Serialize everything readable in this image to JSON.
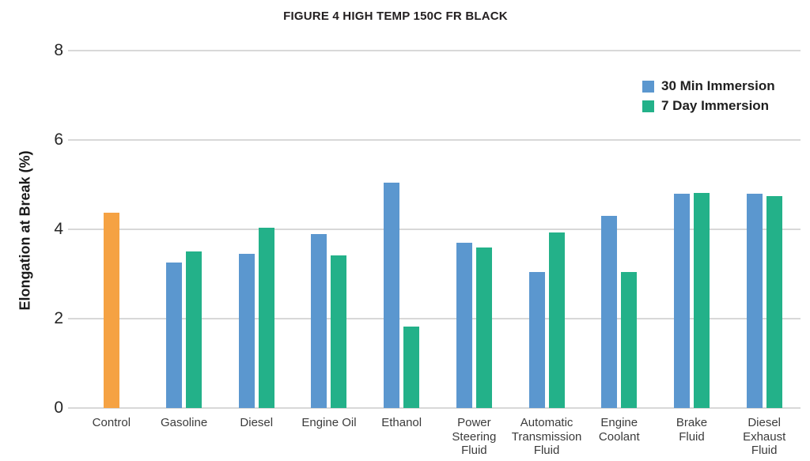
{
  "chart_data": {
    "type": "bar",
    "title": "FIGURE 4 HIGH TEMP 150C FR BLACK",
    "xlabel": "",
    "ylabel": "Elongation at Break (%)",
    "ylim": [
      0,
      8
    ],
    "yticks": [
      0,
      2,
      4,
      6,
      8
    ],
    "grid": true,
    "legend_position": "top-right",
    "background_color": "#ffffff",
    "gridline_color": "#d8d8d8",
    "categories": [
      "Control",
      "Gasoline",
      "Diesel",
      "Engine Oil",
      "Ethanol",
      "Power Steering Fluid",
      "Automatic Transmission Fluid",
      "Engine Coolant",
      "Brake Fluid",
      "Diesel Exhaust Fluid"
    ],
    "category_label_lines": [
      "Control",
      "Gasoline",
      "Diesel",
      "Engine Oil",
      "Ethanol",
      "Power\nSteering\nFluid",
      "Automatic\nTransmission\nFluid",
      "Engine\nCoolant",
      "Brake\nFluid",
      "Diesel\nExhaust\nFluid"
    ],
    "series": [
      {
        "name": "Control",
        "color": "#f5a243",
        "in_legend": false,
        "values": [
          4.37,
          null,
          null,
          null,
          null,
          null,
          null,
          null,
          null,
          null
        ]
      },
      {
        "name": "30 Min Immersion",
        "color": "#5b97cf",
        "in_legend": true,
        "values": [
          null,
          3.25,
          3.45,
          3.9,
          5.05,
          3.7,
          3.05,
          4.3,
          4.8,
          4.8
        ]
      },
      {
        "name": "7 Day Immersion",
        "color": "#23b189",
        "in_legend": true,
        "values": [
          null,
          3.5,
          4.03,
          3.42,
          1.82,
          3.6,
          3.93,
          3.05,
          4.82,
          4.75
        ]
      }
    ],
    "legend": [
      {
        "label": "30 Min Immersion",
        "color": "#5b97cf"
      },
      {
        "label": "7 Day Immersion",
        "color": "#23b189"
      }
    ]
  }
}
